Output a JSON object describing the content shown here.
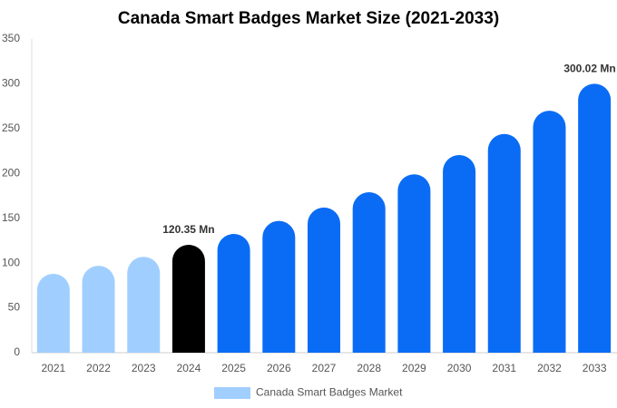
{
  "chart_data": {
    "type": "bar",
    "title": "Canada Smart Badges Market Size (2021-2033)",
    "categories": [
      "2021",
      "2022",
      "2023",
      "2024",
      "2025",
      "2026",
      "2027",
      "2028",
      "2029",
      "2030",
      "2031",
      "2032",
      "2033"
    ],
    "series": [
      {
        "name": "Canada Smart Badges Market",
        "color": "#a0cfff",
        "values": [
          88,
          97,
          107,
          120.35,
          132.5,
          147,
          162,
          179,
          199,
          220.5,
          244,
          270,
          300.02
        ],
        "value_labels": [
          null,
          null,
          null,
          "120.35 Mn",
          null,
          null,
          null,
          null,
          null,
          null,
          null,
          null,
          "300.02 Mn"
        ],
        "colors": [
          "#a0cfff",
          "#a0cfff",
          "#a0cfff",
          "#000000",
          "#0a6cf5",
          "#0a6cf5",
          "#0a6cf5",
          "#0a6cf5",
          "#0a6cf5",
          "#0a6cf5",
          "#0a6cf5",
          "#0a6cf5",
          "#0a6cf5"
        ]
      }
    ],
    "ylim": [
      0,
      350
    ],
    "yticks": [
      0,
      50,
      100,
      150,
      200,
      250,
      300,
      350
    ],
    "grid": false
  }
}
